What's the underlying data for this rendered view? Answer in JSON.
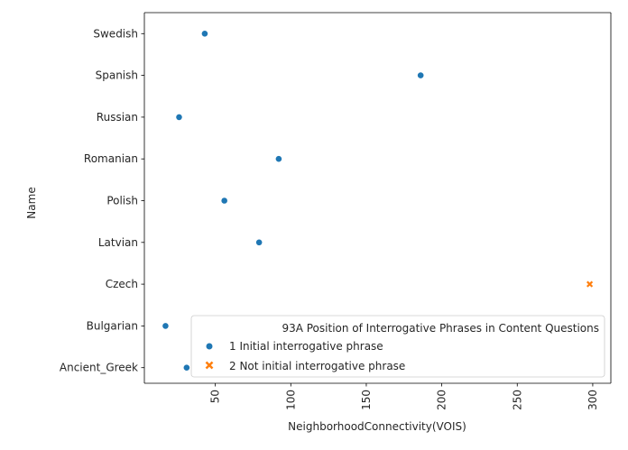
{
  "chart_data": {
    "type": "scatter",
    "xlabel": "NeighborhoodConnectivity(VOIS)",
    "ylabel": "Name",
    "xlim": [
      3,
      312
    ],
    "x_ticks": [
      50,
      100,
      150,
      200,
      250,
      300
    ],
    "x_tick_labels": [
      "50",
      "100",
      "150",
      "200",
      "250",
      "300"
    ],
    "x_tick_rotation": 90,
    "categories": [
      "Swedish",
      "Spanish",
      "Russian",
      "Romanian",
      "Polish",
      "Latvian",
      "Czech",
      "Bulgarian",
      "Ancient_Greek"
    ],
    "grid": false,
    "legend": {
      "title": "93A Position of Interrogative Phrases in Content Questions",
      "placement": "lower-right"
    },
    "series": [
      {
        "name": "1 Initial interrogative phrase",
        "marker": "circle",
        "color": "#1f77b4",
        "points": [
          {
            "x": 43,
            "y": "Swedish"
          },
          {
            "x": 186,
            "y": "Spanish"
          },
          {
            "x": 26,
            "y": "Russian"
          },
          {
            "x": 92,
            "y": "Romanian"
          },
          {
            "x": 56,
            "y": "Polish"
          },
          {
            "x": 79,
            "y": "Latvian"
          },
          {
            "x": 17,
            "y": "Bulgarian"
          },
          {
            "x": 31,
            "y": "Ancient_Greek"
          }
        ]
      },
      {
        "name": "2 Not initial interrogative phrase",
        "marker": "x",
        "color": "#ff7f0e",
        "points": [
          {
            "x": 298,
            "y": "Czech"
          }
        ]
      }
    ]
  }
}
